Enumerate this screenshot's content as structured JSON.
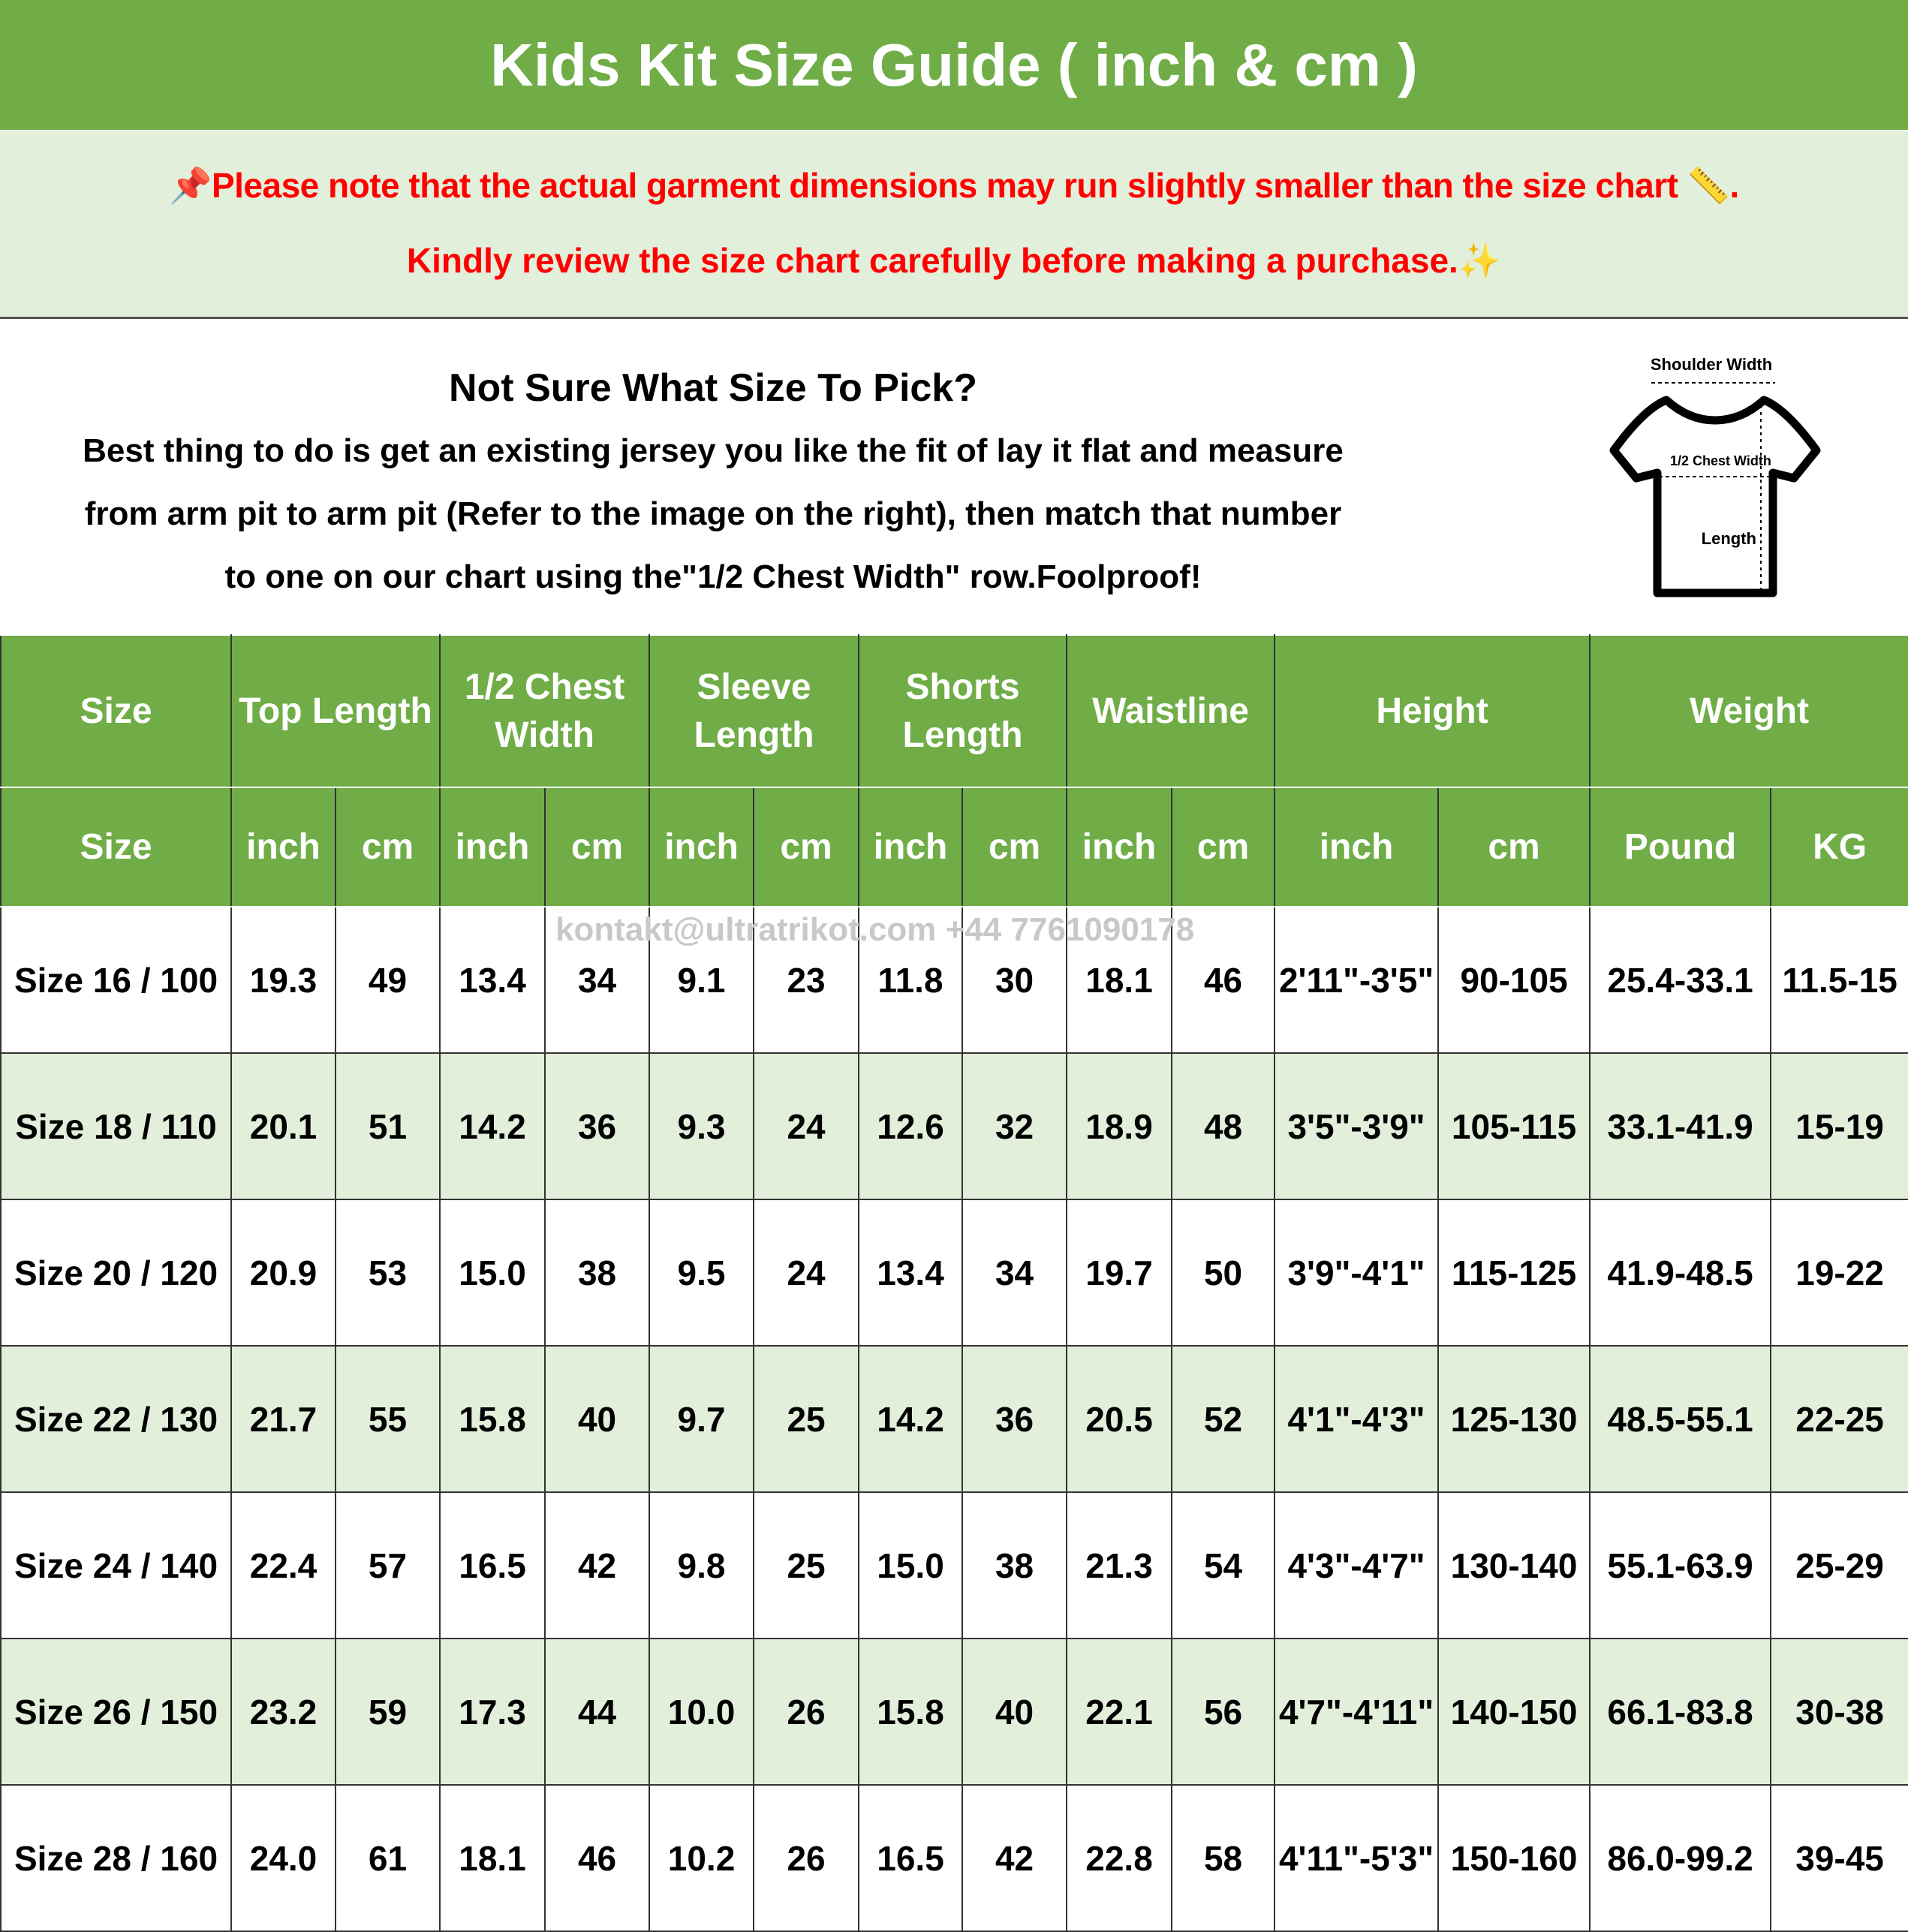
{
  "title": "Kids Kit Size Guide ( inch & cm )",
  "note": {
    "line1": "📌Please note that the actual garment dimensions may run slightly smaller than the size chart 📏.",
    "line2": "Kindly review the size chart carefully before making a purchase.✨"
  },
  "info": {
    "heading": "Not Sure What Size To Pick?",
    "body1": "Best thing to do is get an existing jersey you like the fit of lay it flat and measure",
    "body2": "from arm pit to arm pit (Refer to the image on the right), then match that number",
    "body3": "to one on our chart using the\"1/2 Chest Width\" row.Foolproof!"
  },
  "diagram": {
    "shoulder": "Shoulder Width",
    "chest": "1/2 Chest Width",
    "length": "Length"
  },
  "watermark": "kontakt@ultratrikot.com   +44 7761090178",
  "header_groups": [
    {
      "label": "Size",
      "span": 1
    },
    {
      "label": "Top Length",
      "span": 2
    },
    {
      "label": "1/2 Chest Width",
      "span": 2
    },
    {
      "label": "Sleeve Length",
      "span": 2
    },
    {
      "label": "Shorts Length",
      "span": 2
    },
    {
      "label": "Waistline",
      "span": 2
    },
    {
      "label": "Height",
      "span": 2
    },
    {
      "label": "Weight",
      "span": 2
    }
  ],
  "units": [
    "Size",
    "inch",
    "cm",
    "inch",
    "cm",
    "inch",
    "cm",
    "inch",
    "cm",
    "inch",
    "cm",
    "inch",
    "cm",
    "Pound",
    "KG"
  ],
  "rows": [
    [
      "Size 16 / 100",
      "19.3",
      "49",
      "13.4",
      "34",
      "9.1",
      "23",
      "11.8",
      "30",
      "18.1",
      "46",
      "2'11\"-3'5\"",
      "90-105",
      "25.4-33.1",
      "11.5-15"
    ],
    [
      "Size 18 / 110",
      "20.1",
      "51",
      "14.2",
      "36",
      "9.3",
      "24",
      "12.6",
      "32",
      "18.9",
      "48",
      "3'5\"-3'9\"",
      "105-115",
      "33.1-41.9",
      "15-19"
    ],
    [
      "Size 20 / 120",
      "20.9",
      "53",
      "15.0",
      "38",
      "9.5",
      "24",
      "13.4",
      "34",
      "19.7",
      "50",
      "3'9\"-4'1\"",
      "115-125",
      "41.9-48.5",
      "19-22"
    ],
    [
      "Size 22 / 130",
      "21.7",
      "55",
      "15.8",
      "40",
      "9.7",
      "25",
      "14.2",
      "36",
      "20.5",
      "52",
      "4'1\"-4'3\"",
      "125-130",
      "48.5-55.1",
      "22-25"
    ],
    [
      "Size 24 / 140",
      "22.4",
      "57",
      "16.5",
      "42",
      "9.8",
      "25",
      "15.0",
      "38",
      "21.3",
      "54",
      "4'3\"-4'7\"",
      "130-140",
      "55.1-63.9",
      "25-29"
    ],
    [
      "Size 26 / 150",
      "23.2",
      "59",
      "17.3",
      "44",
      "10.0",
      "26",
      "15.8",
      "40",
      "22.1",
      "56",
      "4'7\"-4'11\"",
      "140-150",
      "66.1-83.8",
      "30-38"
    ],
    [
      "Size 28 / 160",
      "24.0",
      "61",
      "18.1",
      "46",
      "10.2",
      "26",
      "16.5",
      "42",
      "22.8",
      "58",
      "4'11\"-5'3\"",
      "150-160",
      "86.0-99.2",
      "39-45"
    ]
  ],
  "colors": {
    "header_green": "#70ad47",
    "row_alt": "#e2efda",
    "note_red": "#ff0000"
  }
}
